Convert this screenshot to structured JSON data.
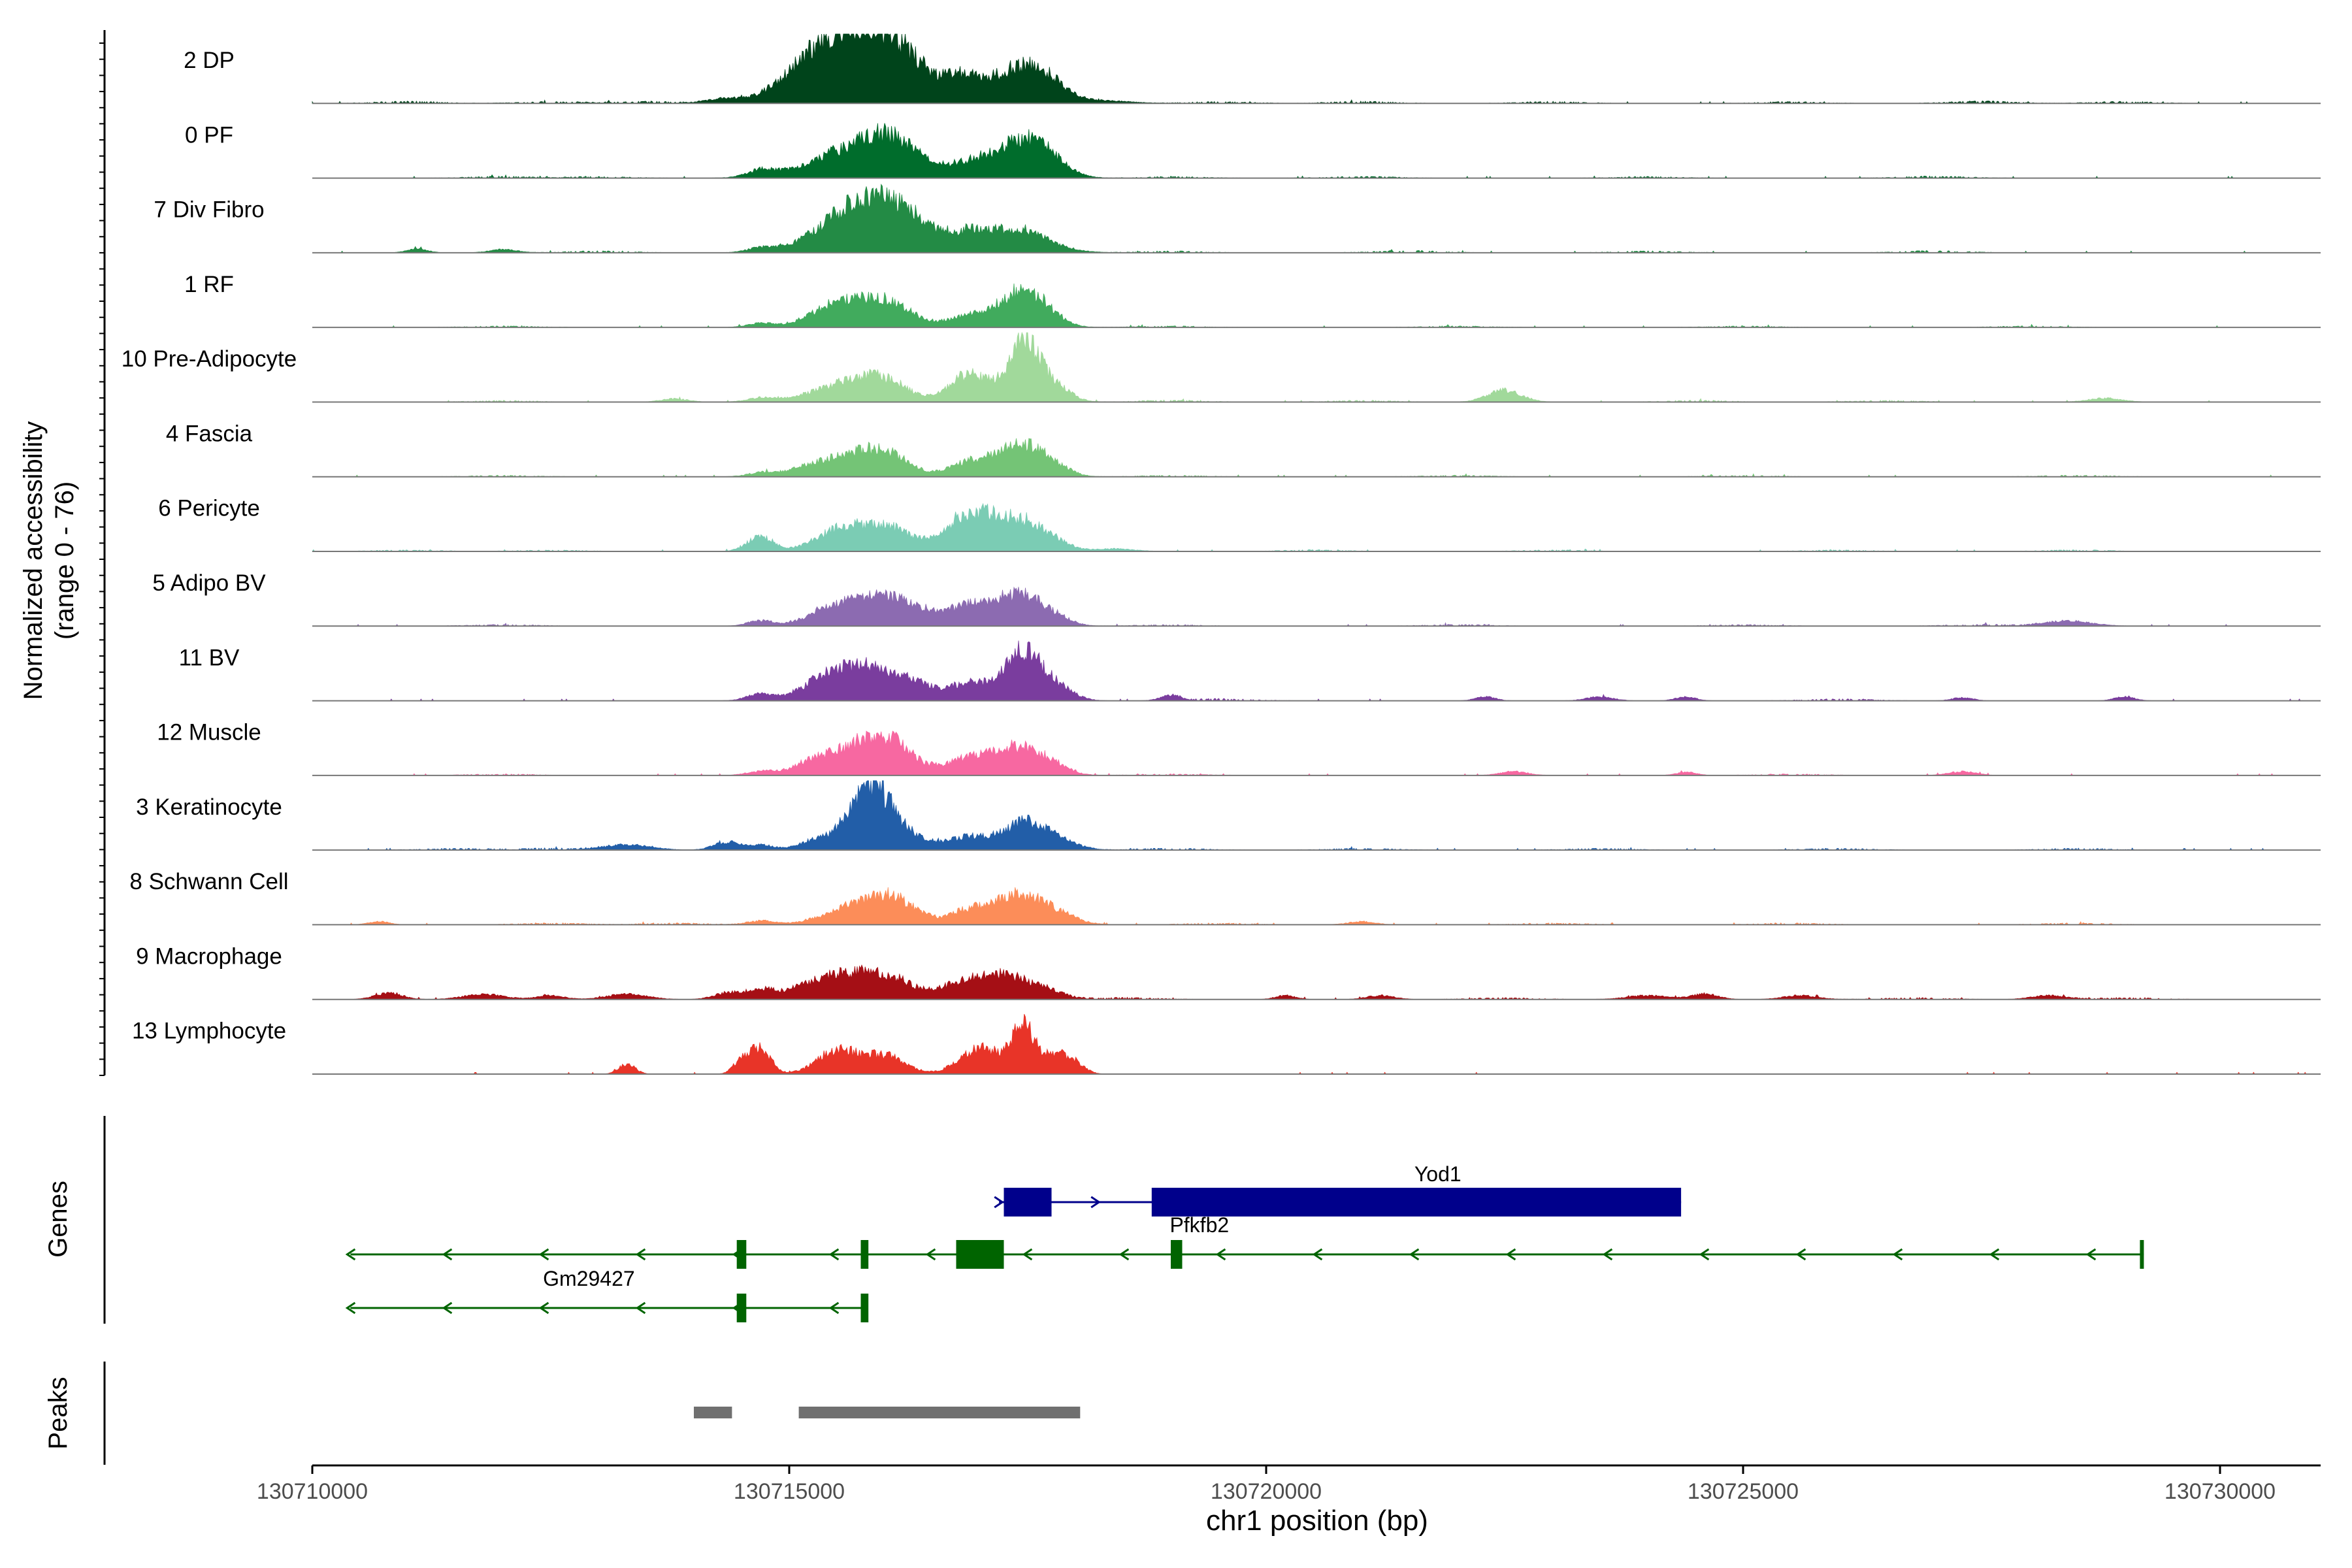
{
  "chart_data": {
    "type": "area",
    "xlabel": "chr1 position (bp)",
    "x_range": [
      130710000,
      130730000
    ],
    "x_ticks": [
      "130710000",
      "130715000",
      "130720000",
      "130725000",
      "130730000"
    ],
    "data_start": 130710000,
    "data_end": 130731000,
    "ylabel_line1": "Normalized accessibility",
    "ylabel_line2": "(range 0 - 76)",
    "y_range": [
      0,
      76
    ],
    "grid": false,
    "tracks": [
      {
        "name": "2 DP",
        "color": "#00441B",
        "peaks": [
          [
            130715750,
            40,
            700
          ],
          [
            130715350,
            22,
            500
          ],
          [
            130716100,
            18,
            450
          ],
          [
            130716850,
            16,
            300
          ],
          [
            130717400,
            24,
            380
          ],
          [
            130717700,
            12,
            300
          ],
          [
            130714300,
            3,
            250
          ],
          [
            130718300,
            2,
            400
          ]
        ],
        "noise": [
          [
            130711000,
            1.5
          ],
          [
            130712500,
            1.2
          ],
          [
            130713500,
            1.5
          ],
          [
            130719500,
            1.2
          ],
          [
            130721000,
            1.4
          ],
          [
            130723000,
            1.3
          ],
          [
            130725500,
            1.2
          ],
          [
            130727500,
            1.6
          ],
          [
            130729000,
            1.3
          ]
        ]
      },
      {
        "name": "0 PF",
        "color": "#006D2C",
        "peaks": [
          [
            130715700,
            22,
            650
          ],
          [
            130716100,
            18,
            400
          ],
          [
            130716900,
            11,
            300
          ],
          [
            130717400,
            25,
            350
          ],
          [
            130717700,
            12,
            300
          ],
          [
            130714700,
            5,
            200
          ]
        ],
        "noise": [
          [
            130712000,
            1.2
          ],
          [
            130713000,
            1.0
          ],
          [
            130719000,
            1.0
          ],
          [
            130721000,
            1.2
          ],
          [
            130724000,
            1.0
          ],
          [
            130727000,
            1.3
          ]
        ]
      },
      {
        "name": "7 Div Fibro",
        "color": "#238B45",
        "peaks": [
          [
            130715800,
            40,
            600
          ],
          [
            130716300,
            12,
            400
          ],
          [
            130716900,
            11,
            300
          ],
          [
            130717400,
            17,
            450
          ],
          [
            130714700,
            3,
            200
          ],
          [
            130711100,
            3,
            150
          ],
          [
            130712000,
            2.5,
            200
          ]
        ],
        "noise": [
          [
            130713000,
            1.3
          ],
          [
            130719000,
            1.2
          ],
          [
            130721500,
            1.6
          ],
          [
            130724000,
            1.2
          ],
          [
            130727000,
            1.4
          ]
        ]
      },
      {
        "name": "1 RF",
        "color": "#41AB5D",
        "peaks": [
          [
            130715500,
            16,
            400
          ],
          [
            130716000,
            19,
            400
          ],
          [
            130716900,
            9,
            300
          ],
          [
            130717400,
            25,
            300
          ],
          [
            130717700,
            9,
            250
          ],
          [
            130714700,
            3,
            200
          ]
        ],
        "noise": [
          [
            130712000,
            1.1
          ],
          [
            130719000,
            1.0
          ],
          [
            130722000,
            1.0
          ],
          [
            130725000,
            1.0
          ],
          [
            130728000,
            1.0
          ]
        ]
      },
      {
        "name": "10 Pre-Adipocyte",
        "color": "#A1D99B",
        "peaks": [
          [
            130715600,
            14,
            500
          ],
          [
            130716000,
            12,
            350
          ],
          [
            130716900,
            22,
            300
          ],
          [
            130717450,
            44,
            220
          ],
          [
            130717750,
            14,
            250
          ],
          [
            130722500,
            9,
            250
          ],
          [
            130714700,
            3,
            200
          ],
          [
            130713800,
            2.5,
            200
          ],
          [
            130728800,
            3,
            250
          ]
        ],
        "noise": [
          [
            130712000,
            1.1
          ],
          [
            130719000,
            1.4
          ],
          [
            130721000,
            1.2
          ],
          [
            130724500,
            1.2
          ],
          [
            130726500,
            1.2
          ]
        ]
      },
      {
        "name": "4 Fascia",
        "color": "#74C476",
        "peaks": [
          [
            130715500,
            14,
            500
          ],
          [
            130716000,
            16,
            350
          ],
          [
            130716900,
            12,
            300
          ],
          [
            130717400,
            24,
            300
          ],
          [
            130717750,
            9,
            250
          ],
          [
            130714700,
            2.5,
            200
          ]
        ],
        "noise": [
          [
            130712000,
            1.0
          ],
          [
            130719000,
            1.0
          ],
          [
            130722000,
            1.0
          ],
          [
            130725000,
            1.0
          ],
          [
            130728500,
            1.1
          ]
        ]
      },
      {
        "name": "6 Pericyte",
        "color": "#7BCCB4",
        "peaks": [
          [
            130715500,
            14,
            350
          ],
          [
            130716000,
            19,
            400
          ],
          [
            130716900,
            30,
            350
          ],
          [
            130717400,
            22,
            300
          ],
          [
            130717750,
            8,
            250
          ],
          [
            130714700,
            11,
            200
          ],
          [
            130718400,
            2,
            300
          ]
        ],
        "noise": [
          [
            130711000,
            1.0
          ],
          [
            130712500,
            1.0
          ],
          [
            130720500,
            1.1
          ],
          [
            130723000,
            1.0
          ],
          [
            130726000,
            1.0
          ],
          [
            130728500,
            1.1
          ]
        ]
      },
      {
        "name": "5 Adipo BV",
        "color": "#8C6BB1",
        "peaks": [
          [
            130715800,
            24,
            500
          ],
          [
            130716300,
            8,
            300
          ],
          [
            130716900,
            16,
            350
          ],
          [
            130717400,
            22,
            300
          ],
          [
            130717750,
            8,
            250
          ],
          [
            130714700,
            4,
            200
          ],
          [
            130715250,
            3,
            200
          ],
          [
            130728400,
            4,
            350
          ]
        ],
        "noise": [
          [
            130712000,
            1.1
          ],
          [
            130719000,
            1.0
          ],
          [
            130722000,
            1.1
          ],
          [
            130725000,
            1.0
          ],
          [
            130727500,
            1.2
          ]
        ]
      },
      {
        "name": "11 BV",
        "color": "#7A3D9E",
        "peaks": [
          [
            130715700,
            28,
            500
          ],
          [
            130716300,
            10,
            300
          ],
          [
            130716900,
            14,
            300
          ],
          [
            130717450,
            38,
            260
          ],
          [
            130717800,
            10,
            250
          ],
          [
            130714700,
            5,
            200
          ],
          [
            130715250,
            4,
            200
          ],
          [
            130722300,
            3,
            150
          ],
          [
            130724400,
            3,
            150
          ],
          [
            130719000,
            4,
            150
          ],
          [
            130723500,
            3,
            200
          ],
          [
            130727300,
            2.5,
            150
          ],
          [
            130729000,
            3,
            150
          ]
        ],
        "noise": [
          [
            130719500,
            1.5
          ],
          [
            130726000,
            1.2
          ]
        ]
      },
      {
        "name": "12 Muscle",
        "color": "#F768A1",
        "peaks": [
          [
            130715600,
            18,
            500
          ],
          [
            130716050,
            22,
            350
          ],
          [
            130716900,
            14,
            350
          ],
          [
            130717400,
            20,
            300
          ],
          [
            130717750,
            8,
            250
          ],
          [
            130714700,
            3,
            200
          ],
          [
            130715200,
            3,
            200
          ],
          [
            130722600,
            3,
            200
          ],
          [
            130724400,
            2.5,
            150
          ],
          [
            130727300,
            3,
            200
          ]
        ],
        "noise": [
          [
            130712000,
            1.0
          ],
          [
            130719000,
            1.0
          ],
          [
            130725500,
            1.0
          ]
        ]
      },
      {
        "name": "3 Keratinocyte",
        "color": "#225EA8",
        "peaks": [
          [
            130715850,
            45,
            280
          ],
          [
            130715500,
            8,
            300
          ],
          [
            130716200,
            12,
            350
          ],
          [
            130716900,
            10,
            300
          ],
          [
            130717450,
            20,
            300
          ],
          [
            130717800,
            7,
            300
          ],
          [
            130714700,
            4,
            200
          ],
          [
            130714350,
            6,
            200
          ],
          [
            130713300,
            4,
            350
          ],
          [
            130715200,
            4,
            200
          ]
        ],
        "noise": [
          [
            130711500,
            1.2
          ],
          [
            130712500,
            1.4
          ],
          [
            130719000,
            1.3
          ],
          [
            130721000,
            1.2
          ],
          [
            130723500,
            1.2
          ],
          [
            130726000,
            1.2
          ],
          [
            130728500,
            1.2
          ]
        ]
      },
      {
        "name": "8 Schwann Cell",
        "color": "#FC8D59",
        "peaks": [
          [
            130715700,
            14,
            450
          ],
          [
            130716100,
            16,
            350
          ],
          [
            130716900,
            11,
            300
          ],
          [
            130717400,
            22,
            350
          ],
          [
            130717800,
            7,
            300
          ],
          [
            130714700,
            3,
            200
          ],
          [
            130710700,
            2.5,
            150
          ],
          [
            130721000,
            2.5,
            200
          ]
        ],
        "noise": [
          [
            130712500,
            1.2
          ],
          [
            130713800,
            1.2
          ],
          [
            130719500,
            1.2
          ],
          [
            130723000,
            1.2
          ],
          [
            130725500,
            1.2
          ],
          [
            130728500,
            1.3
          ]
        ]
      },
      {
        "name": "9 Macrophage",
        "color": "#A50F15",
        "peaks": [
          [
            130715500,
            16,
            350
          ],
          [
            130716000,
            18,
            400
          ],
          [
            130716800,
            12,
            300
          ],
          [
            130717200,
            16,
            300
          ],
          [
            130717600,
            10,
            300
          ],
          [
            130714700,
            8,
            200
          ],
          [
            130714350,
            5,
            200
          ],
          [
            130710800,
            5,
            200
          ],
          [
            130711800,
            4,
            300
          ],
          [
            130712500,
            3,
            200
          ],
          [
            130713300,
            4,
            300
          ],
          [
            130715100,
            6,
            250
          ],
          [
            130720200,
            3,
            150
          ],
          [
            130721200,
            3,
            200
          ],
          [
            130724000,
            3,
            300
          ],
          [
            130724600,
            4,
            200
          ],
          [
            130725600,
            3,
            250
          ],
          [
            130728200,
            3,
            250
          ]
        ],
        "noise": [
          [
            130718500,
            1.4
          ],
          [
            130722500,
            1.2
          ],
          [
            130726800,
            1.3
          ],
          [
            130729000,
            1.2
          ]
        ]
      },
      {
        "name": "13 Lymphocyte",
        "color": "#E83428",
        "peaks": [
          [
            130714700,
            20,
            150
          ],
          [
            130714500,
            10,
            120
          ],
          [
            130713300,
            8,
            120
          ],
          [
            130715500,
            18,
            300
          ],
          [
            130716000,
            14,
            300
          ],
          [
            130717000,
            20,
            300
          ],
          [
            130717450,
            36,
            180
          ],
          [
            130717800,
            14,
            200
          ],
          [
            130718000,
            6,
            150
          ]
        ],
        "noise": []
      }
    ],
    "genes_label": "Genes",
    "genes": [
      {
        "name": "Yod1",
        "strand": "+",
        "color": "#00008B",
        "start": 130717200,
        "end": 130724350,
        "exons": [
          [
            130717250,
            130717750,
            "thick"
          ],
          [
            130718800,
            130724350,
            "thick"
          ]
        ]
      },
      {
        "name": "Pfkfb2",
        "strand": "-",
        "color": "#006400",
        "start": 130710400,
        "end": 130729200,
        "exons": [
          [
            130714450,
            130714550,
            "thick"
          ],
          [
            130715750,
            130715830,
            "thick"
          ],
          [
            130716750,
            130717250,
            "thick"
          ],
          [
            130719000,
            130719120,
            "thick"
          ],
          [
            130729160,
            130729200,
            "thin"
          ]
        ]
      },
      {
        "name": "Gm29427",
        "strand": "-",
        "color": "#006400",
        "start": 130710400,
        "end": 130715800,
        "exons": [
          [
            130714450,
            130714550,
            "thick"
          ],
          [
            130715750,
            130715830,
            "thick"
          ]
        ]
      }
    ],
    "peaks_label": "Peaks",
    "peak_regions": [
      [
        130714000,
        130714400
      ],
      [
        130715100,
        130718050
      ]
    ],
    "peak_color": "#707070"
  }
}
